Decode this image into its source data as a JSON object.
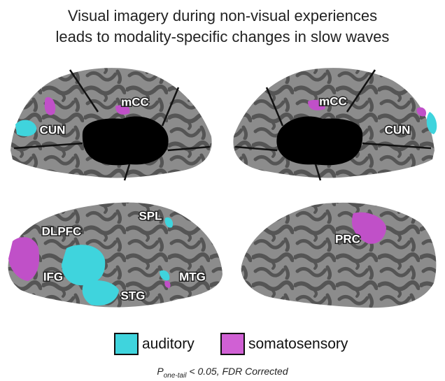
{
  "title": {
    "lines": [
      "Visual imagery during non-visual experiences",
      "leads to modality-specific changes in slow waves"
    ]
  },
  "regions": [
    {
      "label": "mCC"
    },
    {
      "label": "CUN"
    },
    {
      "label": "mCC"
    },
    {
      "label": "CUN"
    },
    {
      "label": "SPL"
    },
    {
      "label": "DLPFC"
    },
    {
      "label": "IFG"
    },
    {
      "label": "MTG"
    },
    {
      "label": "STG"
    },
    {
      "label": "PRC"
    }
  ],
  "legend": {
    "items": [
      {
        "label": "auditory"
      },
      {
        "label": "somatosensory"
      }
    ]
  },
  "footnote": {
    "symbol": "P",
    "subscript": "one-tail",
    "text": " < 0.05, FDR Corrected"
  }
}
